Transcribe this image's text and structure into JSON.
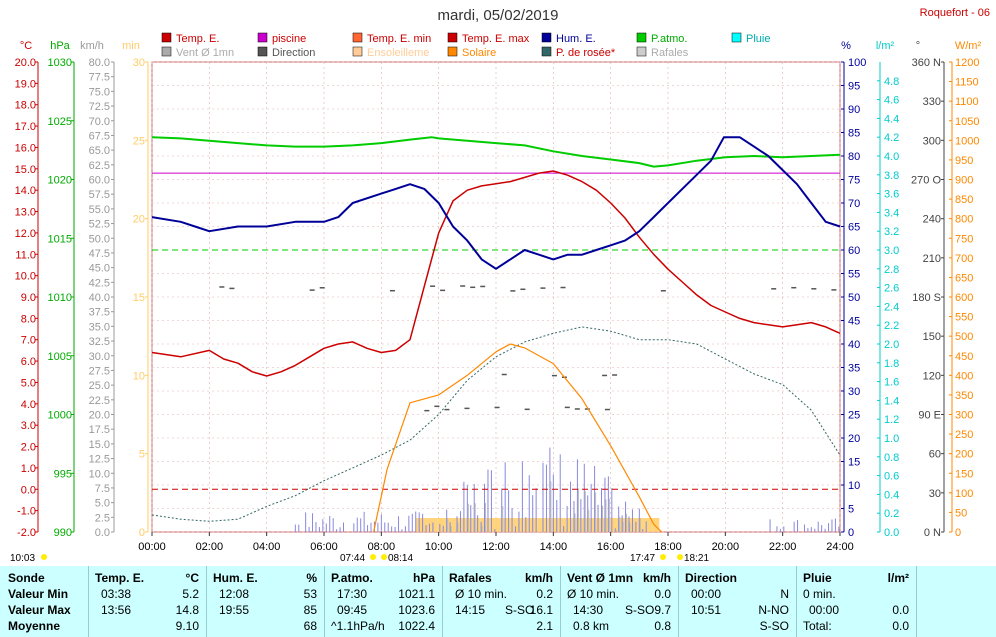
{
  "title": "mardi, 05/02/2019",
  "station": "Roquefort - 06",
  "colors": {
    "background": "#ffffff",
    "stats_background": "#ccffff",
    "temp": "#cc0000",
    "piscine": "#cc00cc",
    "temp_min": "#ff6633",
    "temp_max": "#cc0000",
    "humidity": "#000099",
    "pressure": "#00cc00",
    "rain": "#00cccc",
    "wind": "#aaaaaa",
    "direction": "#555555",
    "sunshine": "#ffcc66",
    "solar": "#ff8800",
    "dewpoint": "#336666",
    "gusts": "#8888dd",
    "grid": "#cc6666"
  },
  "legend": [
    {
      "label": "Temp. E.",
      "color": "#cc0000",
      "text_color": "#cc0000"
    },
    {
      "label": "piscine",
      "color": "#cc00cc",
      "text_color": "#cc0000"
    },
    {
      "label": "Temp. E. min",
      "color": "#ff6633",
      "text_color": "#cc0000"
    },
    {
      "label": "Temp. E. max",
      "color": "#cc0000",
      "text_color": "#cc0000"
    },
    {
      "label": "Hum. E.",
      "color": "#000099",
      "text_color": "#000099"
    },
    {
      "label": "P.atmo.",
      "color": "#00cc00",
      "text_color": "#00aa00"
    },
    {
      "label": "Pluie",
      "color": "#00ffff",
      "text_color": "#00aaaa"
    },
    {
      "label": "Vent Ø 1mn",
      "color": "#aaaaaa",
      "text_color": "#aaaaaa"
    },
    {
      "label": "Direction",
      "color": "#555555",
      "text_color": "#555555"
    },
    {
      "label": "Ensoleilleme",
      "color": "#ffcc99",
      "text_color": "#ffcc99"
    },
    {
      "label": "Solaire",
      "color": "#ff8800",
      "text_color": "#ff8800"
    },
    {
      "label": "P. de rosée*",
      "color": "#336666",
      "text_color": "#cc0000"
    },
    {
      "label": "Rafales",
      "color": "#cccccc",
      "text_color": "#aaaaaa"
    }
  ],
  "chart_data": {
    "type": "line",
    "title": "mardi, 05/02/2019",
    "x_ticks": [
      "00:00",
      "02:00",
      "04:00",
      "06:00",
      "08:00",
      "10:00",
      "12:00",
      "14:00",
      "16:00",
      "18:00",
      "20:00",
      "22:00",
      "24:00"
    ],
    "xlim": [
      0,
      24
    ],
    "axes": {
      "temp": {
        "unit": "°C",
        "ylim": [
          -2.0,
          20.0
        ],
        "ticks": [
          "20.0",
          "19.0",
          "18.0",
          "17.0",
          "16.0",
          "15.0",
          "14.0",
          "13.0",
          "12.0",
          "11.0",
          "10.0",
          "9.0",
          "8.0",
          "7.0",
          "6.0",
          "5.0",
          "4.0",
          "3.0",
          "2.0",
          "1.0",
          "0.0",
          "-1.0",
          "-2.0"
        ]
      },
      "pressure": {
        "unit": "hPa",
        "ylim": [
          990,
          1030
        ],
        "ticks": [
          "1030",
          "1025",
          "1020",
          "1015",
          "1010",
          "1005",
          "1000",
          "995",
          "990"
        ]
      },
      "wind": {
        "unit": "km/h",
        "ylim": [
          0,
          80
        ],
        "ticks": [
          "80.0",
          "77.5",
          "75.0",
          "72.5",
          "70.0",
          "67.5",
          "65.0",
          "62.5",
          "60.0",
          "57.5",
          "55.0",
          "52.5",
          "50.0",
          "47.5",
          "45.0",
          "42.5",
          "40.0",
          "37.5",
          "35.0",
          "32.5",
          "30.0",
          "27.5",
          "25.0",
          "22.5",
          "20.0",
          "17.5",
          "15.0",
          "12.5",
          "10.0",
          "7.5",
          "5.0",
          "2.5",
          "0.0"
        ]
      },
      "sunshine": {
        "unit": "min",
        "ylim": [
          0,
          30
        ],
        "ticks": [
          "30",
          "25",
          "20",
          "15",
          "10",
          "5",
          "0"
        ]
      },
      "humidity": {
        "unit": "%",
        "ylim": [
          0,
          100
        ],
        "ticks": [
          "100",
          "95",
          "90",
          "85",
          "80",
          "75",
          "70",
          "65",
          "60",
          "55",
          "50",
          "45",
          "40",
          "35",
          "30",
          "25",
          "20",
          "15",
          "10",
          "5",
          "0"
        ]
      },
      "rain": {
        "unit": "l/m²",
        "ylim": [
          0,
          5
        ],
        "ticks": [
          "4.8",
          "4.6",
          "4.4",
          "4.2",
          "4.0",
          "3.8",
          "3.6",
          "3.4",
          "3.2",
          "3.0",
          "2.8",
          "2.6",
          "2.4",
          "2.2",
          "2.0",
          "1.8",
          "1.6",
          "1.4",
          "1.2",
          "1.0",
          "0.8",
          "0.6",
          "0.4",
          "0.2",
          "0.0"
        ]
      },
      "direction": {
        "unit": "°",
        "ylim": [
          0,
          360
        ],
        "ticks": [
          "360 N",
          "330",
          "300",
          "270 O",
          "240",
          "210",
          "180 S",
          "150",
          "120",
          "90 E",
          "60",
          "30",
          "0 N"
        ]
      },
      "solar": {
        "unit": "W/m²",
        "ylim": [
          0,
          1200
        ],
        "ticks": [
          "1200",
          "1150",
          "1100",
          "1050",
          "1000",
          "950",
          "900",
          "850",
          "800",
          "750",
          "700",
          "650",
          "600",
          "550",
          "500",
          "450",
          "400",
          "350",
          "300",
          "250",
          "200",
          "150",
          "100",
          "50",
          "0"
        ]
      }
    },
    "series": [
      {
        "name": "Temp. E.",
        "axis": "temp",
        "x": [
          0,
          1,
          2,
          2.5,
          3,
          3.5,
          4,
          4.5,
          5,
          5.5,
          6,
          6.5,
          7,
          7.5,
          8,
          8.5,
          9,
          9.5,
          10,
          10.5,
          11,
          11.5,
          12,
          12.5,
          13,
          13.5,
          14,
          14.5,
          15,
          15.5,
          16,
          16.5,
          17,
          17.5,
          18,
          18.5,
          19,
          19.5,
          20,
          20.5,
          21,
          21.5,
          22,
          22.5,
          23,
          23.5,
          24
        ],
        "y": [
          6.4,
          6.2,
          6.5,
          6.1,
          5.9,
          5.5,
          5.3,
          5.5,
          5.8,
          6.2,
          6.6,
          6.8,
          6.9,
          6.6,
          6.4,
          6.5,
          7.0,
          9.5,
          12.0,
          13.5,
          14.0,
          14.2,
          14.3,
          14.4,
          14.6,
          14.8,
          14.9,
          14.7,
          14.4,
          14.0,
          13.4,
          12.7,
          11.8,
          11.0,
          10.3,
          9.7,
          9.1,
          8.6,
          8.3,
          8.0,
          7.8,
          7.7,
          7.6,
          7.7,
          7.8,
          7.6,
          7.3
        ]
      },
      {
        "name": "P.atmo.",
        "axis": "pressure",
        "x": [
          0,
          1,
          2,
          3,
          4,
          5,
          6,
          7,
          8,
          9,
          9.75,
          10,
          11,
          12,
          13,
          14,
          15,
          16,
          17,
          17.5,
          18,
          19,
          20,
          21,
          22,
          23,
          24
        ],
        "y": [
          1023.6,
          1023.5,
          1023.3,
          1023.1,
          1022.9,
          1022.8,
          1022.8,
          1022.9,
          1023.1,
          1023.4,
          1023.6,
          1023.5,
          1023.3,
          1023.1,
          1022.9,
          1022.4,
          1022.0,
          1021.7,
          1021.4,
          1021.1,
          1021.2,
          1021.6,
          1021.9,
          1022.0,
          1021.9,
          1022.0,
          1022.1
        ]
      },
      {
        "name": "Hum. E.",
        "axis": "humidity",
        "x": [
          0,
          1,
          1.5,
          2,
          3,
          4,
          5,
          6,
          6.5,
          7,
          8,
          8.5,
          9,
          9.5,
          10,
          10.5,
          11,
          11.5,
          12,
          12.5,
          13,
          13.5,
          14,
          14.5,
          15,
          15.5,
          16,
          16.5,
          17,
          17.5,
          18,
          18.5,
          19,
          19.5,
          19.95,
          20.5,
          21,
          21.5,
          22,
          22.5,
          23,
          23.5,
          24
        ],
        "y": [
          67,
          66,
          65,
          64,
          65,
          65,
          66,
          66,
          67,
          70,
          72,
          73,
          74,
          73,
          70,
          65,
          62,
          58,
          56,
          58,
          60,
          59,
          58,
          59,
          59,
          60,
          61,
          62,
          64,
          67,
          70,
          73,
          76,
          79,
          84,
          84,
          82,
          80,
          77,
          74,
          70,
          66,
          65
        ]
      },
      {
        "name": "P. de rosée*",
        "axis": "temp",
        "x": [
          0,
          1,
          2,
          3,
          4,
          5,
          6,
          7,
          8,
          9,
          10,
          11,
          12,
          13,
          14,
          15,
          16,
          17,
          18,
          19,
          20,
          21,
          22,
          23,
          24
        ],
        "y": [
          -1.2,
          -1.4,
          -1.5,
          -1.4,
          -0.8,
          -0.3,
          0.4,
          1.0,
          1.6,
          2.3,
          3.5,
          5.1,
          6.2,
          6.9,
          7.3,
          7.6,
          7.4,
          7.0,
          7.0,
          6.8,
          6.1,
          5.4,
          4.9,
          3.7,
          1.6
        ]
      },
      {
        "name": "Solaire",
        "axis": "solar",
        "x": [
          7.73,
          8.2,
          9,
          10,
          11,
          12,
          12.5,
          13,
          14,
          15,
          16,
          17,
          17.5,
          17.78
        ],
        "y": [
          0,
          160,
          330,
          350,
          400,
          460,
          480,
          470,
          430,
          340,
          220,
          90,
          20,
          0
        ]
      }
    ],
    "hlines": [
      {
        "name": "piscine",
        "axis": "temp",
        "y": 14.8,
        "color": "#cc00cc"
      },
      {
        "name": "P.atmo. ref",
        "axis": "pressure",
        "y": 1014,
        "color": "#00cc00",
        "dashed": true
      },
      {
        "name": "0°C",
        "axis": "temp",
        "y": 0,
        "color": "#cc0000",
        "dashed": true
      }
    ],
    "sun_markers": [
      {
        "label": "10:03",
        "pos": "left"
      },
      {
        "label": "07:44",
        "pos": "rise1"
      },
      {
        "label": "08:14",
        "pos": "rise2"
      },
      {
        "label": "17:47",
        "pos": "set1"
      },
      {
        "label": "18:21",
        "pos": "set2"
      }
    ]
  },
  "stats": {
    "row_labels": [
      "Sonde",
      "Valeur Min",
      "Valeur Max",
      "Moyenne"
    ],
    "temp": {
      "title": "Temp. E.",
      "unit": "°C",
      "min_time": "03:38",
      "min_val": "5.2",
      "max_time": "13:56",
      "max_val": "14.8",
      "avg": "9.10"
    },
    "hum": {
      "title": "Hum. E.",
      "unit": "%",
      "min_time": "12:08",
      "min_val": "53",
      "max_time": "19:55",
      "max_val": "85",
      "avg": "68"
    },
    "pres": {
      "title": "P.atmo.",
      "unit": "hPa",
      "min_time": "17:30",
      "min_val": "1021.1",
      "max_time": "09:45",
      "max_val": "1023.6",
      "avg_label": "^1.1hPa/h",
      "avg": "1022.4"
    },
    "gust": {
      "title": "Rafales",
      "unit": "km/h",
      "min_label": "Ø 10 min.",
      "min_val": "0.2",
      "max_time": "14:15",
      "max_dir": "S-SO",
      "max_val": "16.1",
      "avg": "2.1"
    },
    "wind": {
      "title": "Vent Ø 1mn",
      "unit": "km/h",
      "min_label": "Ø 10 min.",
      "min_val": "0.0",
      "max_time": "14:30",
      "max_dir": "S-SO",
      "max_val": "9.7",
      "avg_label": "0.8 km",
      "avg": "0.8"
    },
    "dir": {
      "title": "Direction",
      "min_time": "00:00",
      "min_val": "N",
      "max_time": "10:51",
      "max_val": "N-NO",
      "avg": "S-SO"
    },
    "rain": {
      "title": "Pluie",
      "unit": "l/m²",
      "min_label": "0 min.",
      "min_val": "",
      "max_time": "00:00",
      "max_val": "0.0",
      "avg_label": "Total:",
      "avg": "0.0"
    }
  }
}
